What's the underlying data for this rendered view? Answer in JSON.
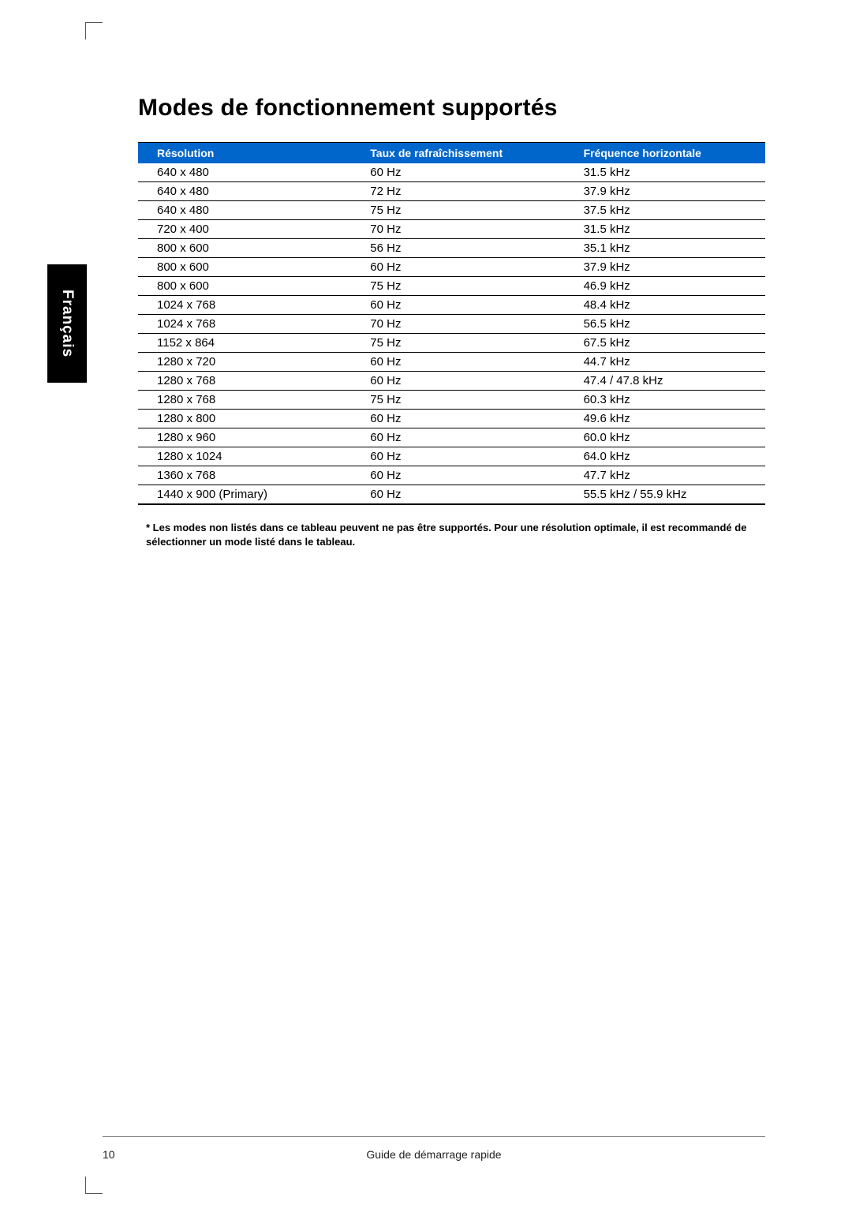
{
  "language_tab": "Français",
  "title": "Modes de fonctionnement supportés",
  "table": {
    "header_bg": "#0066cc",
    "header_fg": "#ffffff",
    "columns": [
      "Résolution",
      "Taux de rafraîchissement",
      "Fréquence horizontale"
    ],
    "rows": [
      [
        "640 x 480",
        "60 Hz",
        "31.5 kHz"
      ],
      [
        "640 x 480",
        "72 Hz",
        "37.9 kHz"
      ],
      [
        "640 x 480",
        "75 Hz",
        "37.5 kHz"
      ],
      [
        "720 x 400",
        "70 Hz",
        "31.5 kHz"
      ],
      [
        "800 x 600",
        "56 Hz",
        "35.1 kHz"
      ],
      [
        "800 x 600",
        "60 Hz",
        "37.9 kHz"
      ],
      [
        "800 x 600",
        "75 Hz",
        "46.9 kHz"
      ],
      [
        "1024 x 768",
        "60 Hz",
        "48.4 kHz"
      ],
      [
        "1024 x 768",
        "70 Hz",
        "56.5 kHz"
      ],
      [
        "1152 x 864",
        "75 Hz",
        "67.5 kHz"
      ],
      [
        "1280 x 720",
        "60 Hz",
        "44.7 kHz"
      ],
      [
        "1280 x 768",
        "60 Hz",
        "47.4 / 47.8 kHz"
      ],
      [
        "1280 x 768",
        "75 Hz",
        "60.3 kHz"
      ],
      [
        "1280 x 800",
        "60 Hz",
        "49.6 kHz"
      ],
      [
        "1280 x 960",
        "60 Hz",
        "60.0 kHz"
      ],
      [
        "1280 x 1024",
        "60 Hz",
        "64.0 kHz"
      ],
      [
        "1360 x 768",
        "60 Hz",
        "47.7 kHz"
      ],
      [
        "1440 x 900 (Primary)",
        "60 Hz",
        "55.5 kHz / 55.9 kHz"
      ]
    ]
  },
  "footnote": "* Les modes non listés dans ce tableau peuvent ne pas être supportés. Pour une résolution optimale, il est recommandé de sélectionner un mode listé dans le tableau.",
  "footer": {
    "page_number": "10",
    "guide_title": "Guide de démarrage rapide"
  }
}
